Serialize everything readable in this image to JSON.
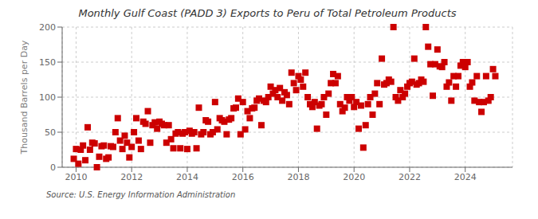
{
  "chart_data": {
    "type": "scatter",
    "title": "Monthly Gulf Coast (PADD 3) Exports to Peru of Total Petroleum Products",
    "ylabel": "Thousand Barrels per Day",
    "source": "Source: U.S. Energy Information Administration",
    "color": "#cc0000",
    "marker": "square",
    "grid": true,
    "xlim": [
      2009.5,
      2025.7
    ],
    "xticks": [
      2010,
      2012,
      2014,
      2016,
      2018,
      2020,
      2022,
      2024
    ],
    "ylim": [
      0,
      200
    ],
    "yticks": [
      0,
      50,
      100,
      150,
      200
    ],
    "x": [
      2009.917,
      2010.0,
      2010.083,
      2010.167,
      2010.25,
      2010.333,
      2010.417,
      2010.5,
      2010.583,
      2010.667,
      2010.75,
      2010.833,
      2010.917,
      2011.0,
      2011.083,
      2011.167,
      2011.25,
      2011.333,
      2011.417,
      2011.5,
      2011.583,
      2011.667,
      2011.75,
      2011.833,
      2011.917,
      2012.0,
      2012.083,
      2012.167,
      2012.25,
      2012.333,
      2012.417,
      2012.5,
      2012.583,
      2012.667,
      2012.75,
      2012.833,
      2012.917,
      2013.0,
      2013.083,
      2013.167,
      2013.25,
      2013.333,
      2013.417,
      2013.5,
      2013.583,
      2013.667,
      2013.75,
      2013.833,
      2013.917,
      2014.0,
      2014.083,
      2014.167,
      2014.25,
      2014.333,
      2014.417,
      2014.5,
      2014.583,
      2014.667,
      2014.75,
      2014.833,
      2014.917,
      2015.0,
      2015.083,
      2015.167,
      2015.25,
      2015.333,
      2015.417,
      2015.5,
      2015.583,
      2015.667,
      2015.75,
      2015.833,
      2015.917,
      2016.0,
      2016.083,
      2016.167,
      2016.25,
      2016.333,
      2016.417,
      2016.5,
      2016.583,
      2016.667,
      2016.75,
      2016.833,
      2016.917,
      2017.0,
      2017.083,
      2017.167,
      2017.25,
      2017.333,
      2017.417,
      2017.5,
      2017.583,
      2017.667,
      2017.75,
      2017.833,
      2017.917,
      2018.0,
      2018.083,
      2018.167,
      2018.25,
      2018.333,
      2018.417,
      2018.5,
      2018.583,
      2018.667,
      2018.75,
      2018.833,
      2018.917,
      2019.0,
      2019.083,
      2019.167,
      2019.25,
      2019.333,
      2019.417,
      2019.5,
      2019.583,
      2019.667,
      2019.75,
      2019.833,
      2019.917,
      2020.0,
      2020.083,
      2020.167,
      2020.25,
      2020.333,
      2020.417,
      2020.5,
      2020.583,
      2020.667,
      2020.75,
      2020.833,
      2020.917,
      2021.0,
      2021.083,
      2021.167,
      2021.25,
      2021.333,
      2021.417,
      2021.5,
      2021.583,
      2021.667,
      2021.75,
      2021.833,
      2021.917,
      2022.0,
      2022.083,
      2022.167,
      2022.25,
      2022.333,
      2022.417,
      2022.5,
      2022.583,
      2022.667,
      2022.75,
      2022.833,
      2022.917,
      2023.0,
      2023.083,
      2023.167,
      2023.25,
      2023.333,
      2023.417,
      2023.5,
      2023.583,
      2023.667,
      2023.75,
      2023.833,
      2023.917,
      2024.0,
      2024.083,
      2024.167,
      2024.25,
      2024.333,
      2024.417,
      2024.5,
      2024.583,
      2024.667,
      2024.75,
      2024.833,
      2024.917,
      2025.0,
      2025.083
    ],
    "values": [
      12,
      26,
      5,
      25,
      31,
      10,
      57,
      25,
      35,
      34,
      0,
      15,
      30,
      31,
      12,
      14,
      30,
      29,
      50,
      70,
      38,
      26,
      45,
      35,
      14,
      29,
      50,
      70,
      38,
      26,
      65,
      62,
      80,
      35,
      60,
      64,
      55,
      65,
      62,
      60,
      35,
      60,
      40,
      27,
      48,
      50,
      27,
      48,
      50,
      26,
      52,
      48,
      50,
      27,
      85,
      47,
      50,
      67,
      65,
      47,
      50,
      93,
      54,
      70,
      67,
      65,
      47,
      68,
      70,
      84,
      85,
      98,
      47,
      93,
      54,
      80,
      70,
      84,
      85,
      95,
      98,
      60,
      95,
      93,
      100,
      115,
      105,
      110,
      100,
      113,
      95,
      107,
      103,
      90,
      135,
      120,
      110,
      130,
      125,
      115,
      135,
      100,
      90,
      86,
      93,
      55,
      88,
      90,
      100,
      75,
      105,
      120,
      133,
      120,
      130,
      90,
      80,
      85,
      100,
      95,
      100,
      86,
      93,
      55,
      88,
      28,
      60,
      90,
      100,
      75,
      105,
      120,
      90,
      155,
      118,
      120,
      125,
      122,
      200,
      100,
      95,
      110,
      100,
      105,
      115,
      120,
      122,
      155,
      118,
      120,
      125,
      122,
      200,
      172,
      147,
      102,
      147,
      168,
      144,
      143,
      150,
      115,
      121,
      95,
      130,
      115,
      130,
      145,
      150,
      143,
      150,
      115,
      121,
      95,
      130,
      93,
      79,
      93,
      130,
      95,
      100,
      140,
      130
    ]
  }
}
